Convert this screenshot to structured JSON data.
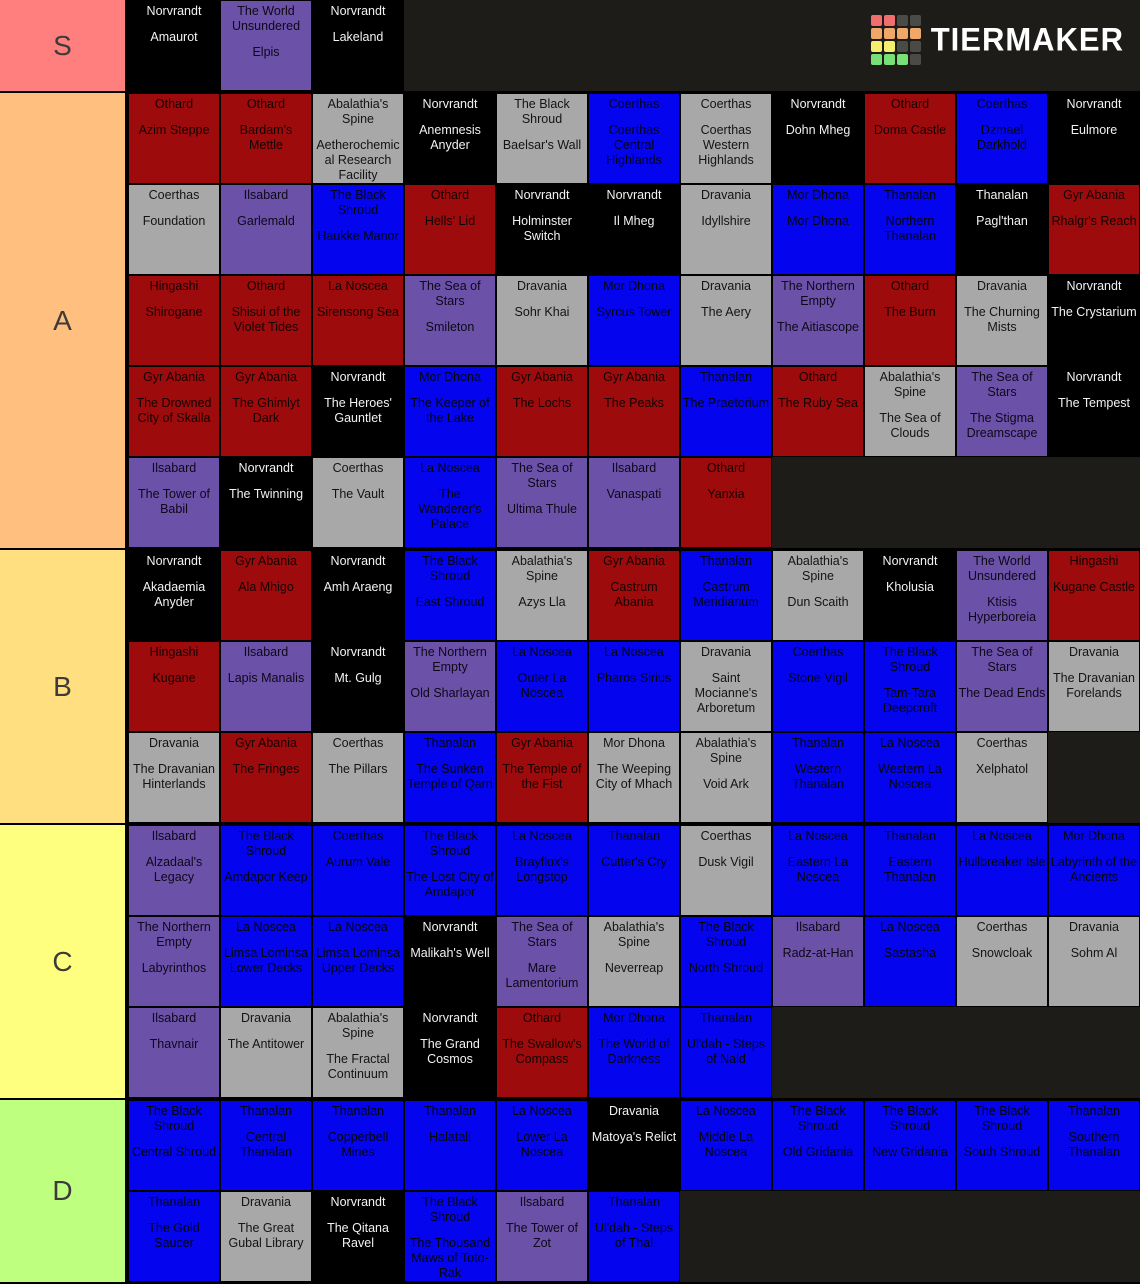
{
  "page": {
    "background": "#000000",
    "row_background": "#1d1c19"
  },
  "logo": {
    "text": "TIERMAKER",
    "text_color": "#ffffff",
    "grid_colors": [
      [
        "#f06e6e",
        "#f06e6e",
        "#4a4a47",
        "#4a4a47"
      ],
      [
        "#f0a868",
        "#f0a868",
        "#f0a868",
        "#f0a868"
      ],
      [
        "#f3ee6b",
        "#f3ee6b",
        "#4a4a47",
        "#4a4a47"
      ],
      [
        "#77e077",
        "#77e077",
        "#77e077",
        "#4a4a47"
      ]
    ]
  },
  "palette": {
    "black": {
      "bg": "#000000",
      "text": "#f2f2f2"
    },
    "purple": {
      "bg": "#6b51a8",
      "text": "#0d0818"
    },
    "red": {
      "bg": "#9e0b0c",
      "text": "#140202"
    },
    "blue": {
      "bg": "#0404ee",
      "text": "#05050c"
    },
    "gray": {
      "bg": "#a8a8a8",
      "text": "#141414"
    }
  },
  "tiers": [
    {
      "label": "S",
      "color": "#ff7f7f",
      "items": [
        {
          "region": "Norvrandt",
          "name": "Amaurot",
          "color": "black"
        },
        {
          "region": "The World Unsundered",
          "name": "Elpis",
          "color": "purple"
        },
        {
          "region": "Norvrandt",
          "name": "Lakeland",
          "color": "black"
        }
      ]
    },
    {
      "label": "A",
      "color": "#ffbf7f",
      "items": [
        {
          "region": "Othard",
          "name": "Azim Steppe",
          "color": "red"
        },
        {
          "region": "Othard",
          "name": "Bardam's Mettle",
          "color": "red"
        },
        {
          "region": "Abalathia's Spine",
          "name": "Aetherochemical Research Facility",
          "color": "gray"
        },
        {
          "region": "Norvrandt",
          "name": "Anemnesis Anyder",
          "color": "black"
        },
        {
          "region": "The Black Shroud",
          "name": "Baelsar's Wall",
          "color": "gray"
        },
        {
          "region": "Coerthas",
          "name": "Coerthas Central Highlands",
          "color": "blue"
        },
        {
          "region": "Coerthas",
          "name": "Coerthas Western Highlands",
          "color": "gray"
        },
        {
          "region": "Norvrandt",
          "name": "Dohn Mheg",
          "color": "black"
        },
        {
          "region": "Othard",
          "name": "Doma Castle",
          "color": "red"
        },
        {
          "region": "Coerthas",
          "name": "Dzmael Darkhold",
          "color": "blue"
        },
        {
          "region": "Norvrandt",
          "name": "Eulmore",
          "color": "black"
        },
        {
          "region": "Coerthas",
          "name": "Foundation",
          "color": "gray"
        },
        {
          "region": "Ilsabard",
          "name": "Garlemald",
          "color": "purple"
        },
        {
          "region": "The Black Shroud",
          "name": "Haukke Manor",
          "color": "blue"
        },
        {
          "region": "Othard",
          "name": "Hells' Lid",
          "color": "red"
        },
        {
          "region": "Norvrandt",
          "name": "Holminster Switch",
          "color": "black"
        },
        {
          "region": "Norvrandt",
          "name": "Il Mheg",
          "color": "black"
        },
        {
          "region": "Dravania",
          "name": "Idyllshire",
          "color": "gray"
        },
        {
          "region": "Mor Dhona",
          "name": "Mor Dhona",
          "color": "blue"
        },
        {
          "region": "Thanalan",
          "name": "Northern Thanalan",
          "color": "blue"
        },
        {
          "region": "Thanalan",
          "name": "Pagl'than",
          "color": "black"
        },
        {
          "region": "Gyr Abania",
          "name": "Rhalgr's Reach",
          "color": "red"
        },
        {
          "region": "Hingashi",
          "name": "Shirogane",
          "color": "red"
        },
        {
          "region": "Othard",
          "name": "Shisui of the Violet Tides",
          "color": "red"
        },
        {
          "region": "La Noscea",
          "name": "Sirensong Sea",
          "color": "red"
        },
        {
          "region": "The Sea of Stars",
          "name": "Smileton",
          "color": "purple"
        },
        {
          "region": "Dravania",
          "name": "Sohr Khai",
          "color": "gray"
        },
        {
          "region": "Mor Dhona",
          "name": "Syrcus Tower",
          "color": "blue"
        },
        {
          "region": "Dravania",
          "name": "The Aery",
          "color": "gray"
        },
        {
          "region": "The Northern Empty",
          "name": "The Aitiascope",
          "color": "purple"
        },
        {
          "region": "Othard",
          "name": "The Burn",
          "color": "red"
        },
        {
          "region": "Dravania",
          "name": "The Churning Mists",
          "color": "gray"
        },
        {
          "region": "Norvrandt",
          "name": "The Crystarium",
          "color": "black"
        },
        {
          "region": "Gyr Abania",
          "name": "The Drowned City of Skalla",
          "color": "red"
        },
        {
          "region": "Gyr Abania",
          "name": "The Ghimlyt Dark",
          "color": "red"
        },
        {
          "region": "Norvrandt",
          "name": "The Heroes' Gauntlet",
          "color": "black"
        },
        {
          "region": "Mor Dhona",
          "name": "The Keeper of the Lake",
          "color": "blue"
        },
        {
          "region": "Gyr Abania",
          "name": "The Lochs",
          "color": "red"
        },
        {
          "region": "Gyr Abania",
          "name": "The Peaks",
          "color": "red"
        },
        {
          "region": "Thanalan",
          "name": "The Praetorium",
          "color": "blue"
        },
        {
          "region": "Othard",
          "name": "The Ruby Sea",
          "color": "red"
        },
        {
          "region": "Abalathia's Spine",
          "name": "The Sea of Clouds",
          "color": "gray"
        },
        {
          "region": "The Sea of Stars",
          "name": "The Stigma Dreamscape",
          "color": "purple"
        },
        {
          "region": "Norvrandt",
          "name": "The Tempest",
          "color": "black"
        },
        {
          "region": "Ilsabard",
          "name": "The Tower of Babil",
          "color": "purple"
        },
        {
          "region": "Norvrandt",
          "name": "The Twinning",
          "color": "black"
        },
        {
          "region": "Coerthas",
          "name": "The Vault",
          "color": "gray"
        },
        {
          "region": "La Noscea",
          "name": "The Wanderer's Palace",
          "color": "blue"
        },
        {
          "region": "The Sea of Stars",
          "name": "Ultima Thule",
          "color": "purple"
        },
        {
          "region": "Ilsabard",
          "name": "Vanaspati",
          "color": "purple"
        },
        {
          "region": "Othard",
          "name": "Yanxia",
          "color": "red"
        }
      ]
    },
    {
      "label": "B",
      "color": "#ffdf7f",
      "items": [
        {
          "region": "Norvrandt",
          "name": "Akadaemia Anyder",
          "color": "black"
        },
        {
          "region": "Gyr Abania",
          "name": "Ala Mhigo",
          "color": "red"
        },
        {
          "region": "Norvrandt",
          "name": "Amh Araeng",
          "color": "black"
        },
        {
          "region": "The Black Shroud",
          "name": "East Shroud",
          "color": "blue"
        },
        {
          "region": "Abalathia's Spine",
          "name": "Azys Lla",
          "color": "gray"
        },
        {
          "region": "Gyr Abania",
          "name": "Castrum Abania",
          "color": "red"
        },
        {
          "region": "Thanalan",
          "name": "Castrum Meridianum",
          "color": "blue"
        },
        {
          "region": "Abalathia's Spine",
          "name": "Dun Scaith",
          "color": "gray"
        },
        {
          "region": "Norvrandt",
          "name": "Kholusia",
          "color": "black"
        },
        {
          "region": "The World Unsundered",
          "name": "Ktisis Hyperboreia",
          "color": "purple"
        },
        {
          "region": "Hingashi",
          "name": "Kugane Castle",
          "color": "red"
        },
        {
          "region": "Hingashi",
          "name": "Kugane",
          "color": "red"
        },
        {
          "region": "Ilsabard",
          "name": "Lapis Manalis",
          "color": "purple"
        },
        {
          "region": "Norvrandt",
          "name": "Mt. Gulg",
          "color": "black"
        },
        {
          "region": "The Northern Empty",
          "name": "Old Sharlayan",
          "color": "purple"
        },
        {
          "region": "La Noscea",
          "name": "Outer La Noscea",
          "color": "blue"
        },
        {
          "region": "La Noscea",
          "name": "Pharos Sirius",
          "color": "blue"
        },
        {
          "region": "Dravania",
          "name": "Saint Mocianne's Arboretum",
          "color": "gray"
        },
        {
          "region": "Coerthas",
          "name": "Stone Vigil",
          "color": "blue"
        },
        {
          "region": "The Black Shroud",
          "name": "Tam-Tara Deepcroft",
          "color": "blue"
        },
        {
          "region": "The Sea of Stars",
          "name": "The Dead Ends",
          "color": "purple"
        },
        {
          "region": "Dravania",
          "name": "The Dravanian Forelands",
          "color": "gray"
        },
        {
          "region": "Dravania",
          "name": "The Dravanian Hinterlands",
          "color": "gray"
        },
        {
          "region": "Gyr Abania",
          "name": "The Fringes",
          "color": "red"
        },
        {
          "region": "Coerthas",
          "name": "The Pillars",
          "color": "gray"
        },
        {
          "region": "Thanalan",
          "name": "The Sunken Temple of Qarn",
          "color": "blue"
        },
        {
          "region": "Gyr Abania",
          "name": "The Temple of the Fist",
          "color": "red"
        },
        {
          "region": "Mor Dhona",
          "name": "The Weeping City of Mhach",
          "color": "gray"
        },
        {
          "region": "Abalathia's Spine",
          "name": "Void Ark",
          "color": "gray"
        },
        {
          "region": "Thanalan",
          "name": "Western Thanalan",
          "color": "blue"
        },
        {
          "region": "La Noscea",
          "name": "Western La Noscea",
          "color": "blue"
        },
        {
          "region": "Coerthas",
          "name": "Xelphatol",
          "color": "gray"
        }
      ]
    },
    {
      "label": "C",
      "color": "#ffff7f",
      "items": [
        {
          "region": "Ilsabard",
          "name": "Alzadaal's Legacy",
          "color": "purple"
        },
        {
          "region": "The Black Shroud",
          "name": "Amdapor Keep",
          "color": "blue"
        },
        {
          "region": "Coerthas",
          "name": "Aurum Vale",
          "color": "blue"
        },
        {
          "region": "The Black Shroud",
          "name": "The Lost City of Amdapor",
          "color": "blue"
        },
        {
          "region": "La Noscea",
          "name": "Brayflox's Longstop",
          "color": "blue"
        },
        {
          "region": "Thanalan",
          "name": "Cutter's Cry",
          "color": "blue"
        },
        {
          "region": "Coerthas",
          "name": "Dusk Vigil",
          "color": "gray"
        },
        {
          "region": "La Noscea",
          "name": "Eastern La Noscea",
          "color": "blue"
        },
        {
          "region": "Thanalan",
          "name": "Eastern Thanalan",
          "color": "blue"
        },
        {
          "region": "La Noscea",
          "name": "Hullbreaker Isle",
          "color": "blue"
        },
        {
          "region": "Mor Dhona",
          "name": "Labyrinth of the Ancients",
          "color": "blue"
        },
        {
          "region": "The Northern Empty",
          "name": "Labyrinthos",
          "color": "purple"
        },
        {
          "region": "La Noscea",
          "name": "Limsa Lominsa Lower Decks",
          "color": "blue"
        },
        {
          "region": "La Noscea",
          "name": "Limsa Lominsa Upper Decks",
          "color": "blue"
        },
        {
          "region": "Norvrandt",
          "name": "Malikah's Well",
          "color": "black"
        },
        {
          "region": "The Sea of Stars",
          "name": "Mare Lamentorium",
          "color": "purple"
        },
        {
          "region": "Abalathia's Spine",
          "name": "Neverreap",
          "color": "gray"
        },
        {
          "region": "The Black Shroud",
          "name": "North Shroud",
          "color": "blue"
        },
        {
          "region": "Ilsabard",
          "name": "Radz-at-Han",
          "color": "purple"
        },
        {
          "region": "La Noscea",
          "name": "Sastasha",
          "color": "blue"
        },
        {
          "region": "Coerthas",
          "name": "Snowcloak",
          "color": "gray"
        },
        {
          "region": "Dravania",
          "name": "Sohm Al",
          "color": "gray"
        },
        {
          "region": "Ilsabard",
          "name": "Thavnair",
          "color": "purple"
        },
        {
          "region": "Dravania",
          "name": "The Antitower",
          "color": "gray"
        },
        {
          "region": "Abalathia's Spine",
          "name": "The Fractal Continuum",
          "color": "gray"
        },
        {
          "region": "Norvrandt",
          "name": "The Grand Cosmos",
          "color": "black"
        },
        {
          "region": "Othard",
          "name": "The Swallow's Compass",
          "color": "red"
        },
        {
          "region": "Mor Dhona",
          "name": "The World of Darkness",
          "color": "blue"
        },
        {
          "region": "Thanalan",
          "name": "Ul'dah - Steps of Nald",
          "color": "blue"
        }
      ]
    },
    {
      "label": "D",
      "color": "#bfff7f",
      "items": [
        {
          "region": "The Black Shroud",
          "name": "Central Shroud",
          "color": "blue"
        },
        {
          "region": "Thanalan",
          "name": "Central Thanalan",
          "color": "blue"
        },
        {
          "region": "Thanalan",
          "name": "Copperbell Mines",
          "color": "blue"
        },
        {
          "region": "Thanalan",
          "name": "Halatali",
          "color": "blue"
        },
        {
          "region": "La Noscea",
          "name": "Lower La Noscea",
          "color": "blue"
        },
        {
          "region": "Dravania",
          "name": "Matoya's Relict",
          "color": "black"
        },
        {
          "region": "La Noscea",
          "name": "Middle La Noscea",
          "color": "blue"
        },
        {
          "region": "The Black Shroud",
          "name": "Old Gridania",
          "color": "blue"
        },
        {
          "region": "The Black Shroud",
          "name": "New Gridania",
          "color": "blue"
        },
        {
          "region": "The Black Shroud",
          "name": "South Shroud",
          "color": "blue"
        },
        {
          "region": "Thanalan",
          "name": "Southern Thanalan",
          "color": "blue"
        },
        {
          "region": "Thanalan",
          "name": "The Gold Saucer",
          "color": "blue"
        },
        {
          "region": "Dravania",
          "name": "The Great Gubal Library",
          "color": "gray"
        },
        {
          "region": "Norvrandt",
          "name": "The Qitana Ravel",
          "color": "black"
        },
        {
          "region": "The Black Shroud",
          "name": "The Thousand Maws of Toto-Rak",
          "color": "blue"
        },
        {
          "region": "Ilsabard",
          "name": "The Tower of Zot",
          "color": "purple"
        },
        {
          "region": "Thanalan",
          "name": "Ul'dah - Steps of Thal",
          "color": "blue"
        }
      ]
    }
  ]
}
